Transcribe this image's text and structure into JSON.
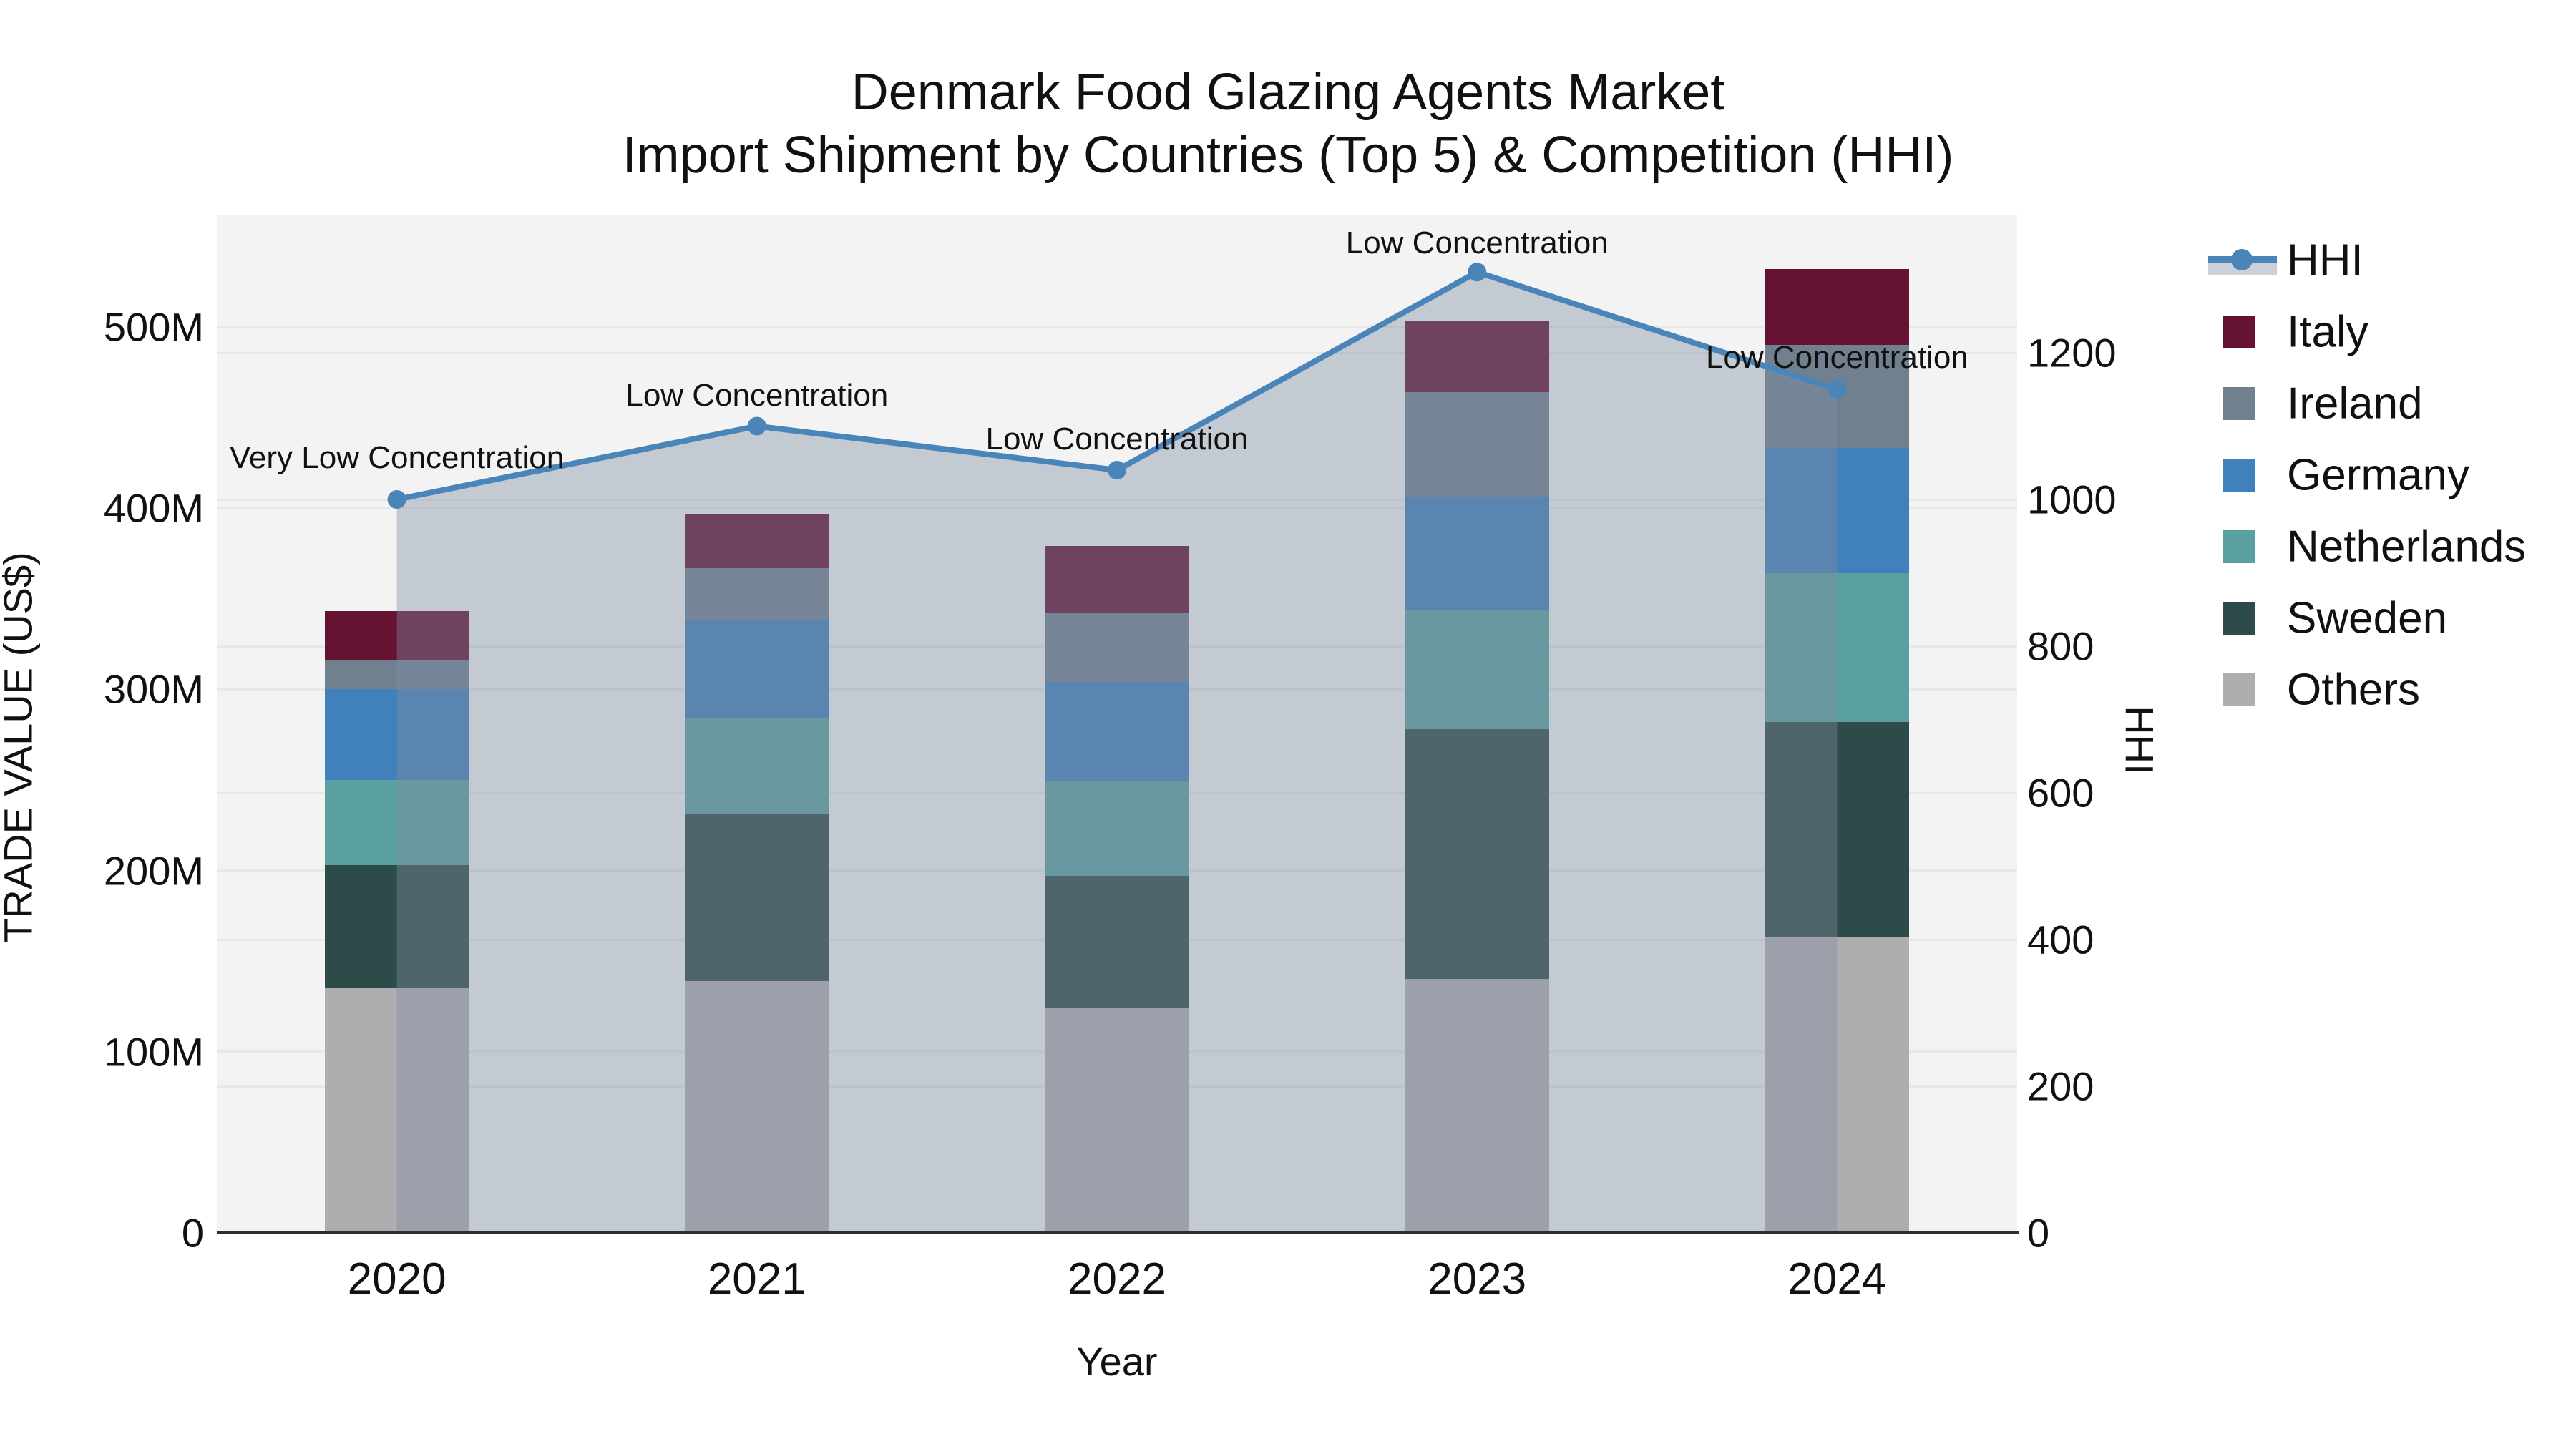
{
  "title": {
    "line1": "Denmark Food Glazing Agents Market",
    "line2": "Import Shipment by Countries (Top 5) & Competition (HHI)"
  },
  "axes": {
    "x_label": "Year",
    "y_left_label": "TRADE VALUE (US$)",
    "y_right_label": "HHI",
    "y_left_ticks": [
      {
        "value": 0,
        "label": "0"
      },
      {
        "value": 100,
        "label": "100M"
      },
      {
        "value": 200,
        "label": "200M"
      },
      {
        "value": 300,
        "label": "300M"
      },
      {
        "value": 400,
        "label": "400M"
      },
      {
        "value": 500,
        "label": "500M"
      }
    ],
    "y_right_ticks": [
      {
        "value": 0,
        "label": "0"
      },
      {
        "value": 200,
        "label": "200"
      },
      {
        "value": 400,
        "label": "400"
      },
      {
        "value": 600,
        "label": "600"
      },
      {
        "value": 800,
        "label": "800"
      },
      {
        "value": 1000,
        "label": "1000"
      },
      {
        "value": 1200,
        "label": "1200"
      }
    ]
  },
  "legend": {
    "items": [
      {
        "label": "HHI",
        "type": "line",
        "color": "#4a85ba",
        "band_color": "#ccd0d9"
      },
      {
        "label": "Italy",
        "type": "swatch",
        "color": "#651233"
      },
      {
        "label": "Ireland",
        "type": "swatch",
        "color": "#71808f"
      },
      {
        "label": "Germany",
        "type": "swatch",
        "color": "#4181bb"
      },
      {
        "label": "Netherlands",
        "type": "swatch",
        "color": "#5ba0a0"
      },
      {
        "label": "Sweden",
        "type": "swatch",
        "color": "#2d4c49"
      },
      {
        "label": "Others",
        "type": "swatch",
        "color": "#aeaeb0"
      }
    ]
  },
  "chart_data": {
    "type": "bar",
    "stacked": true,
    "title": "Denmark Food Glazing Agents Market — Import Shipment by Countries (Top 5) & Competition (HHI)",
    "xlabel": "Year",
    "ylabel": "TRADE VALUE (US$)",
    "ylabel_right": "HHI",
    "grid": true,
    "legend_position": "right",
    "categories": [
      "2020",
      "2021",
      "2022",
      "2023",
      "2024"
    ],
    "unit": "million US$",
    "ylim_left_M": [
      0,
      562
    ],
    "ylim_right_HHI": [
      0,
      1388
    ],
    "series": [
      {
        "name": "Others",
        "color": "#aeaeb0",
        "values": [
          135,
          139,
          124,
          140,
          163
        ]
      },
      {
        "name": "Sweden",
        "color": "#2d4c49",
        "values": [
          68,
          92,
          73,
          138,
          119
        ]
      },
      {
        "name": "Netherlands",
        "color": "#5ba0a0",
        "values": [
          47,
          53,
          52,
          66,
          82
        ]
      },
      {
        "name": "Germany",
        "color": "#4181bb",
        "values": [
          50,
          54,
          55,
          62,
          69
        ]
      },
      {
        "name": "Ireland",
        "color": "#71808f",
        "values": [
          16,
          29,
          38,
          58,
          57
        ]
      },
      {
        "name": "Italy",
        "color": "#651233",
        "values": [
          27,
          30,
          37,
          39,
          42
        ]
      }
    ],
    "totals_M": [
      343,
      397,
      379,
      503,
      532
    ],
    "line_series": {
      "name": "HHI",
      "axis": "right",
      "color": "#4a85ba",
      "area_fill": "rgba(128,140,162,0.40)",
      "marker": "circle",
      "values": [
        1000,
        1100,
        1040,
        1310,
        1150
      ]
    },
    "annotations": [
      {
        "category": "2020",
        "text": "Very Low Concentration",
        "dy": -58
      },
      {
        "category": "2021",
        "text": "Low Concentration",
        "dy": -43
      },
      {
        "category": "2022",
        "text": "Low Concentration",
        "dy": -43
      },
      {
        "category": "2023",
        "text": "Low Concentration",
        "dy": -40
      },
      {
        "category": "2024",
        "text": "Low Concentration",
        "dy": -44
      }
    ]
  }
}
